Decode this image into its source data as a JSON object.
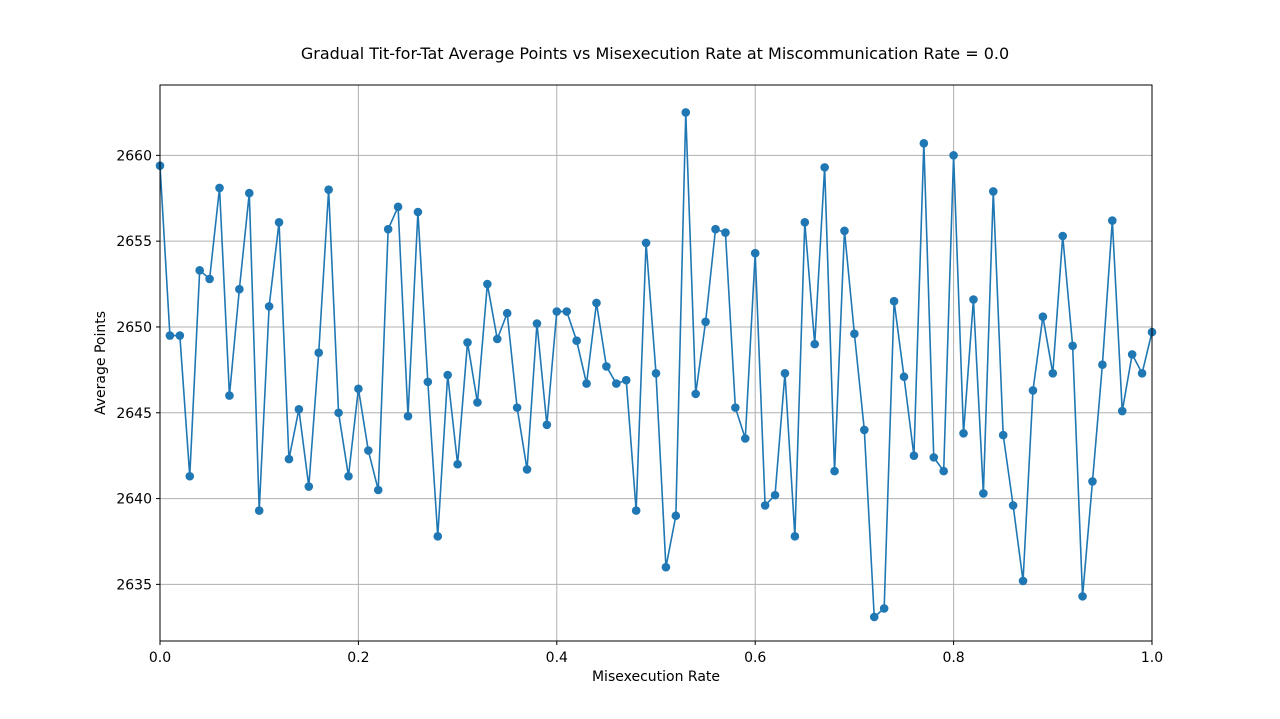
{
  "chart_data": {
    "type": "line",
    "title": "Gradual Tit-for-Tat Average Points vs Misexecution Rate at Miscommunication Rate = 0.0",
    "xlabel": "Misexecution Rate",
    "ylabel": "Average Points",
    "xlim": [
      0,
      1
    ],
    "ylim": [
      2631.7,
      2664.1
    ],
    "x_ticks": [
      "0.0",
      "0.2",
      "0.4",
      "0.6",
      "0.8",
      "1.0"
    ],
    "y_ticks": [
      "2635",
      "2640",
      "2645",
      "2650",
      "2655",
      "2660"
    ],
    "grid": true,
    "marker": "circle",
    "color": "#1f77b4",
    "series": [
      {
        "x": [
          0.0,
          0.01,
          0.02,
          0.03,
          0.04,
          0.05,
          0.06,
          0.07,
          0.08,
          0.09,
          0.1,
          0.11,
          0.12,
          0.13,
          0.14,
          0.15,
          0.16,
          0.17,
          0.18,
          0.19,
          0.2,
          0.21,
          0.22,
          0.23,
          0.24,
          0.25,
          0.26,
          0.27,
          0.28,
          0.29,
          0.3,
          0.31,
          0.32,
          0.33,
          0.34,
          0.35,
          0.36,
          0.37,
          0.38,
          0.39,
          0.4,
          0.41,
          0.42,
          0.43,
          0.44,
          0.45,
          0.46,
          0.47,
          0.48,
          0.49,
          0.5,
          0.51,
          0.52,
          0.53,
          0.54,
          0.55,
          0.56,
          0.57,
          0.58,
          0.59,
          0.6,
          0.61,
          0.62,
          0.63,
          0.64,
          0.65,
          0.66,
          0.67,
          0.68,
          0.69,
          0.7,
          0.71,
          0.72,
          0.73,
          0.74,
          0.75,
          0.76,
          0.77,
          0.78,
          0.79,
          0.8,
          0.81,
          0.82,
          0.83,
          0.84,
          0.85,
          0.86,
          0.87,
          0.88,
          0.89,
          0.9,
          0.91,
          0.92,
          0.93,
          0.94,
          0.95,
          0.96,
          0.97,
          0.98,
          0.99,
          1.0
        ],
        "y": [
          2659.4,
          2649.5,
          2649.5,
          2641.3,
          2653.3,
          2652.8,
          2658.1,
          2646.0,
          2652.2,
          2657.8,
          2639.3,
          2651.2,
          2656.1,
          2642.3,
          2645.2,
          2640.7,
          2648.5,
          2658.0,
          2645.0,
          2641.3,
          2646.4,
          2642.8,
          2640.5,
          2655.7,
          2657.0,
          2644.8,
          2656.7,
          2646.8,
          2637.8,
          2647.2,
          2642.0,
          2649.1,
          2645.6,
          2652.5,
          2649.3,
          2650.8,
          2645.3,
          2641.7,
          2650.2,
          2644.3,
          2650.9,
          2650.9,
          2649.2,
          2646.7,
          2651.4,
          2647.7,
          2646.7,
          2646.9,
          2639.3,
          2654.9,
          2647.3,
          2636.0,
          2639.0,
          2662.5,
          2646.1,
          2650.3,
          2655.7,
          2655.5,
          2645.3,
          2643.5,
          2654.3,
          2639.6,
          2640.2,
          2647.3,
          2637.8,
          2656.1,
          2649.0,
          2659.3,
          2641.6,
          2655.6,
          2649.6,
          2644.0,
          2633.1,
          2633.6,
          2651.5,
          2647.1,
          2642.5,
          2660.7,
          2642.4,
          2641.6,
          2660.0,
          2643.8,
          2651.6,
          2640.3,
          2657.9,
          2643.7,
          2639.6,
          2635.2,
          2646.3,
          2650.6,
          2647.3,
          2655.3,
          2648.9,
          2634.3,
          2641.0,
          2647.8,
          2656.2,
          2645.1,
          2648.4,
          2647.3,
          2649.7
        ]
      }
    ]
  }
}
